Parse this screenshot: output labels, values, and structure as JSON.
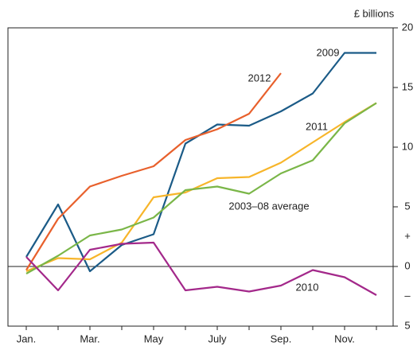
{
  "chart_data": {
    "type": "line",
    "y_label": "£ billions",
    "categories": [
      "Jan.",
      null,
      "Mar.",
      null,
      "May",
      null,
      "July",
      null,
      "Sep.",
      null,
      "Nov.",
      null
    ],
    "series": [
      {
        "name": "2009",
        "color": "#1b5b87",
        "values": [
          0.8,
          5.2,
          -0.4,
          1.8,
          2.7,
          10.3,
          11.9,
          11.8,
          13.0,
          14.5,
          17.9,
          17.9
        ]
      },
      {
        "name": "2012",
        "color": "#e8602c",
        "values": [
          -0.3,
          4.0,
          6.7,
          7.6,
          8.4,
          10.6,
          11.5,
          12.8,
          16.2,
          null,
          null,
          null
        ]
      },
      {
        "name": "2011",
        "color": "#f7b52a",
        "values": [
          -0.4,
          0.7,
          0.6,
          2.0,
          5.8,
          6.2,
          7.4,
          7.5,
          8.7,
          10.4,
          12.1,
          13.7
        ]
      },
      {
        "name": "2003–08 average",
        "color": "#7ab648",
        "values": [
          -0.6,
          0.9,
          2.6,
          3.1,
          4.1,
          6.4,
          6.7,
          6.1,
          7.8,
          8.9,
          12.0,
          13.7
        ]
      },
      {
        "name": "2010",
        "color": "#a3288a",
        "values": [
          0.8,
          -2.0,
          1.4,
          1.9,
          2.0,
          -2.0,
          -1.7,
          -2.1,
          -1.6,
          -0.3,
          -0.9,
          -2.4
        ]
      }
    ],
    "ylim": [
      -5,
      20
    ],
    "yticks": [
      {
        "value": -5,
        "label": "5"
      },
      {
        "value": -2.5,
        "label": "–"
      },
      0,
      {
        "value": 2.5,
        "label": "+"
      },
      5,
      10,
      15,
      20
    ]
  }
}
